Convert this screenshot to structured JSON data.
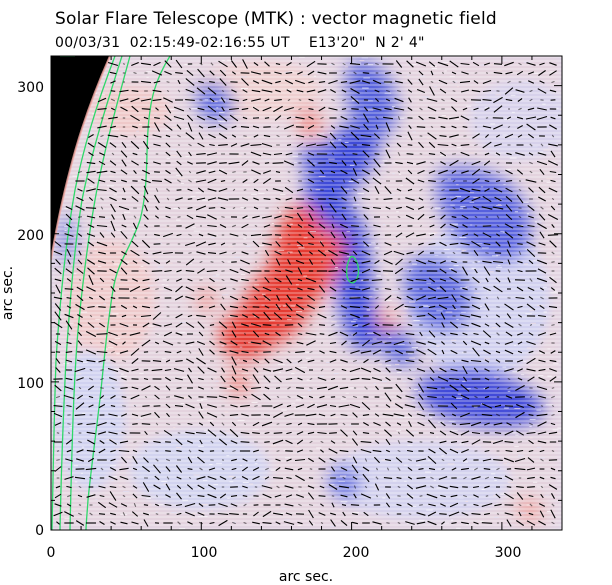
{
  "header": {
    "title": "Solar Flare Telescope (MTK) : vector magnetic field",
    "subtitle": "00/03/31  02:15:49-02:16:55 UT    E13'20\"  N 2' 4\""
  },
  "chart_data": {
    "type": "heatmap",
    "title": "Solar Flare Telescope (MTK) : vector magnetic field",
    "xlabel": "arc sec.",
    "ylabel": "arc sec.",
    "xlim": [
      0,
      340
    ],
    "ylim": [
      0,
      320
    ],
    "x_ticks": [
      "0",
      "100",
      "200",
      "300"
    ],
    "y_ticks": [
      "0",
      "100",
      "200",
      "300"
    ],
    "x_tick_values": [
      0,
      100,
      200,
      300
    ],
    "y_tick_values": [
      0,
      100,
      200,
      300
    ],
    "colors": {
      "positive_polarity": "#e8322a",
      "negative_polarity": "#2b3fd6",
      "background_positive": "#f6d3d0",
      "background_negative": "#c9cdf3",
      "contour": "#2fd86a",
      "vectors": "#000000",
      "off_disk": "#000000"
    },
    "grid": false
  }
}
